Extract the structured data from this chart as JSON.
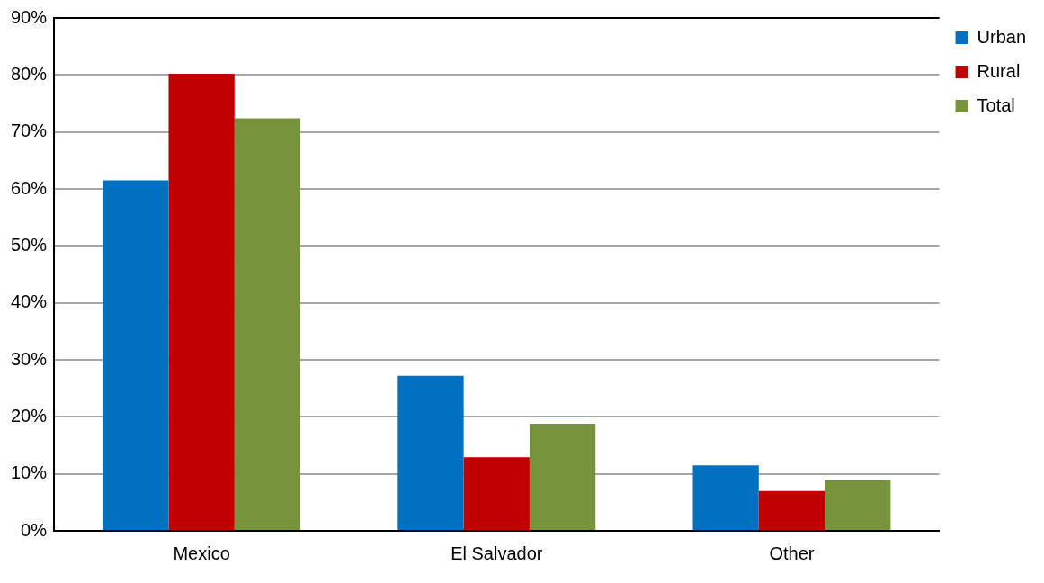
{
  "chart_data": {
    "type": "bar",
    "categories": [
      "Mexico",
      "El Salvador",
      "Other"
    ],
    "series": [
      {
        "name": "Urban",
        "color": "#0070c0",
        "values": [
          61.5,
          27.2,
          11.5
        ]
      },
      {
        "name": "Rural",
        "color": "#c00000",
        "values": [
          80.2,
          12.9,
          7.0
        ]
      },
      {
        "name": "Total",
        "color": "#77933c",
        "values": [
          72.4,
          18.8,
          8.9
        ]
      }
    ],
    "ylim": [
      0,
      90
    ],
    "yticks": [
      {
        "value": 0,
        "label": "0%"
      },
      {
        "value": 10,
        "label": "10%"
      },
      {
        "value": 20,
        "label": "20%"
      },
      {
        "value": 30,
        "label": "30%"
      },
      {
        "value": 40,
        "label": "40%"
      },
      {
        "value": 50,
        "label": "50%"
      },
      {
        "value": 60,
        "label": "60%"
      },
      {
        "value": 70,
        "label": "70%"
      },
      {
        "value": 80,
        "label": "80%"
      },
      {
        "value": 90,
        "label": "90%"
      }
    ],
    "grid": "y",
    "legend": "right"
  }
}
